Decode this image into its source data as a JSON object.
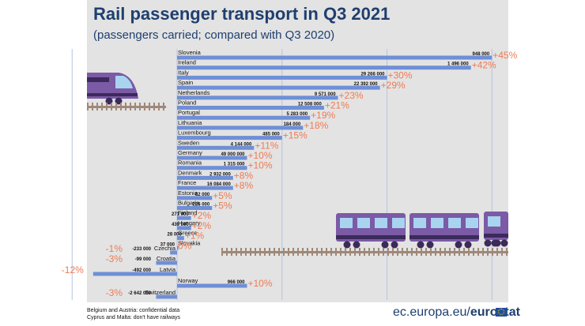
{
  "header": {
    "title": "Rail passenger transport in Q3 2021",
    "subtitle": "(passengers carried; compared with Q3 2020)"
  },
  "footnotes": [
    "Belgium and Austria: confidential data",
    "Cyprus and Malta: don't have railways"
  ],
  "source": {
    "prefix": "ec.europa.eu/",
    "brand": "eurostat"
  },
  "colors": {
    "bar": "#6f8fd6",
    "positive": "#f07a52",
    "negative": "#f07a52",
    "title": "#1f3f6e",
    "panel": "#e3e3e3",
    "train": "#7b5aa6"
  },
  "chart_data": {
    "type": "bar",
    "orientation": "horizontal",
    "title": "Rail passenger transport in Q3 2021",
    "subtitle": "(passengers carried; compared with Q3 2020)",
    "categories": [
      "Slovenia",
      "Ireland",
      "Italy",
      "Spain",
      "Netherlands",
      "Poland",
      "Portugal",
      "Lithuania",
      "Luxembourg",
      "Sweden",
      "Germany",
      "Romania",
      "Denmark",
      "France",
      "Estonia",
      "Bulgaria",
      "Finland",
      "Hungary",
      "Greece",
      "Slovakia",
      "Czechia",
      "Croatia",
      "Latvia",
      "Norway",
      "Switzerland"
    ],
    "change_labels": [
      "+45%",
      "+42%",
      "+30%",
      "+29%",
      "+23%",
      "+21%",
      "+19%",
      "+18%",
      "+15%",
      "+11%",
      "+10%",
      "+10%",
      "+8%",
      "+8%",
      "+5%",
      "+5%",
      "+2%",
      "+2%",
      "+1%",
      "0%",
      "-1%",
      "-3%",
      "-12%",
      "+10%",
      "-3%"
    ],
    "change_percent": [
      45,
      42,
      30,
      29,
      23,
      21,
      19,
      18,
      15,
      11,
      10,
      10,
      8,
      8,
      5,
      5,
      2,
      2,
      1,
      0,
      -1,
      -3,
      -12,
      10,
      -3
    ],
    "absolute_change_labels": [
      "948 000",
      "1 496 000",
      "29 266 000",
      "22 392 000",
      "9 571 000",
      "12 508 000",
      "5 283 000",
      "184 000",
      "485 000",
      "4 144 000",
      "49 000 000",
      "1 315 000",
      "2 932 000",
      "16 084 000",
      "82 000",
      "225 000",
      "271 000",
      "439 000",
      "28 000",
      "37 000",
      "-233 000",
      "-99 000",
      "-492 000",
      "966 000",
      "-2 642 000"
    ],
    "xlim": [
      -15,
      47
    ]
  }
}
